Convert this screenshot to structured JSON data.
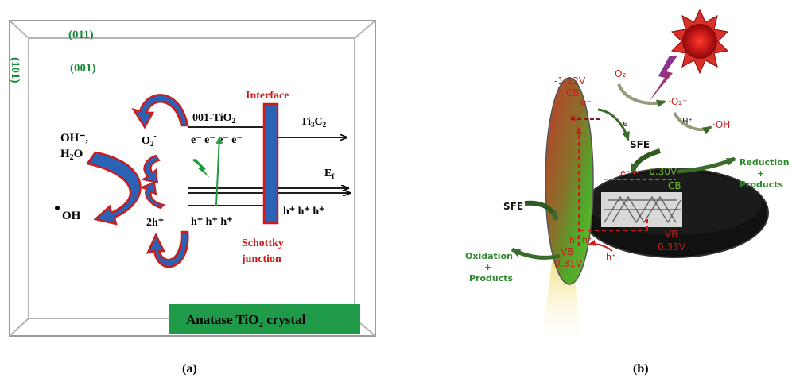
{
  "panel_a": {
    "facets": {
      "f011": "(011)",
      "f001": "(001)",
      "f101": "(101)"
    },
    "interface_label": "Interface",
    "tio2_label": "001-TiO",
    "tio2_sub": "2",
    "ti3c2": {
      "base": "Ti",
      "sub1": "3",
      "mid": "C",
      "sub2": "2"
    },
    "ef": {
      "base": "E",
      "sub": "f"
    },
    "electrons_left": "e⁻ e⁻ e⁻ e⁻",
    "holes_left": "h⁺ h⁺ h⁺",
    "holes_right": "h⁺ h⁺ h⁺",
    "o2": {
      "base": "O",
      "sub": "2",
      "sup": "-"
    },
    "oh_minus": "OH⁻,",
    "h2o": {
      "base": "H",
      "sub": "2",
      "tail": "O"
    },
    "oh_radical": "OH",
    "two_holes": "2h⁺",
    "schottky_1": "Schottky",
    "schottky_2": "junction",
    "banner": {
      "base": "Anatase TiO",
      "sub": "2",
      "tail": " crystal"
    },
    "caption": "(a)"
  },
  "panel_b": {
    "cb_left": "-1.12V",
    "cb_left_label": "CB",
    "e_top": "e⁻",
    "e_mid": "e⁻",
    "e_flow": "e⁻",
    "o2": "O₂",
    "o2_radical": "·O₂⁻",
    "h_plus": "H⁺",
    "oh": "·OH",
    "sfe_right": "SFE",
    "sfe_left": "SFE",
    "cb_right_value": "-0.30V",
    "cb_right_label": "CB",
    "e_right": "e⁻ e⁻",
    "reduction_1": "Reduction",
    "reduction_2": "+",
    "reduction_3": "Products",
    "vb_left_label": "VB",
    "vb_left_value": "0.31V",
    "vb_right_label": "VB",
    "vb_right_value": "0.33V",
    "h_left": "h⁺ h⁺",
    "h_right": "h⁺",
    "oxidation_1": "Oxidation",
    "oxidation_2": "+",
    "oxidation_3": "Products",
    "caption": "(b)"
  },
  "colors": {
    "green_text": "#1a8a3a",
    "red_text": "#cc1b1b",
    "blue_arrow": "#2a63b6",
    "banner": "#1f9a49",
    "dark_green": "#2f5a22"
  }
}
